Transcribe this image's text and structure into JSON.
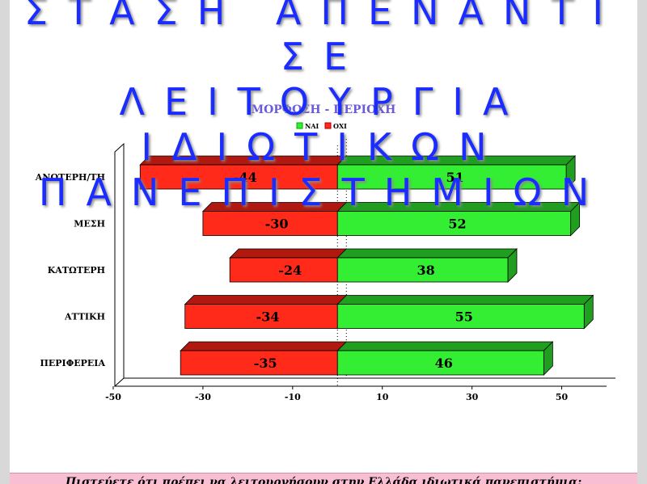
{
  "title_lines": [
    "ΣΤΑΣΗ ΑΠΕΝΑΝΤΙ ΣΕ",
    "ΛΕΙΤΟΥΡΓΙΑ",
    "ΙΔΙΩΤΙΚΩΝ",
    "ΠΑΝΕΠΙΣΤΗΜΙΩΝ"
  ],
  "question": "Πιστεύετε ότι πρέπει να λειτουργήσουν στην Ελλάδα ιδιωτικά πανεπιστήμια;",
  "colors": {
    "yes": "#33ee33",
    "yes_dark": "#1f9e1f",
    "no": "#ff2a1a",
    "no_dark": "#b01810",
    "title": "#1a2cff"
  },
  "chart_data": {
    "type": "bar",
    "orientation": "horizontal",
    "title": "ΜΟΡΦΩΣΗ - ΠΕΡΙΟΧΗ",
    "categories": [
      "ΑΝΩΤΕΡΗ/ΤΗ",
      "ΜΕΣΗ",
      "ΚΑΤΩΤΕΡΗ",
      "ΑΤΤΙΚΗ",
      "ΠΕΡΙΦΕΡΕΙΑ"
    ],
    "series": [
      {
        "name": "ΝΑΙ",
        "values": [
          51,
          52,
          38,
          55,
          46
        ]
      },
      {
        "name": "ΟΧΙ",
        "values": [
          -44,
          -30,
          -24,
          -34,
          -35
        ]
      }
    ],
    "xlim": [
      -50,
      60
    ],
    "xticks": [
      -50,
      -30,
      -10,
      10,
      30,
      50
    ],
    "legend": "top-center",
    "grid": false
  }
}
